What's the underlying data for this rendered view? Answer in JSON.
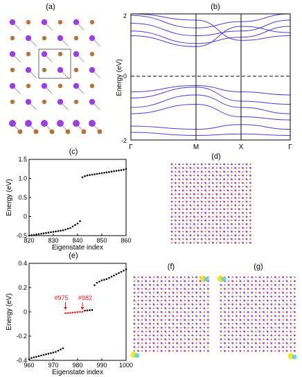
{
  "panels": {
    "a": "(a)",
    "b": "(b)",
    "c": "(c)",
    "d": "(d)",
    "e": "(e)",
    "f": "(f)",
    "g": "(g)"
  },
  "colors": {
    "purple": "#9b3fe0",
    "brown": "#b8733a",
    "band": "#4a3fcf",
    "red": "#e0201a",
    "cyan": "#5ec8e6",
    "yellow": "#f0e21a"
  },
  "chart_b": {
    "ylabel": "Energy (eV)",
    "yticks": [
      "2",
      "0",
      "-2"
    ],
    "kpoints": [
      "Γ",
      "M",
      "X",
      "Γ"
    ]
  },
  "chart_data": [
    {
      "type": "scatter",
      "panel": "c",
      "xlabel": "Eigenstate index",
      "ylabel": "Energy (eV)",
      "xlim": [
        820,
        860
      ],
      "ylim": [
        -0.5,
        1.5
      ],
      "xticks": [
        "820",
        "830",
        "840",
        "850",
        "860"
      ],
      "yticks": [
        "-0.5",
        "0",
        "0.5",
        "1.0",
        "1.5"
      ],
      "x_start": 820,
      "y": [
        -0.5,
        -0.49,
        -0.48,
        -0.47,
        -0.46,
        -0.45,
        -0.44,
        -0.43,
        -0.42,
        -0.41,
        -0.4,
        -0.39,
        -0.38,
        -0.37,
        -0.36,
        -0.34,
        -0.32,
        -0.3,
        -0.26,
        -0.22,
        -0.18,
        -0.12,
        1.03,
        1.06,
        1.08,
        1.09,
        1.1,
        1.11,
        1.12,
        1.13,
        1.14,
        1.15,
        1.16,
        1.17,
        1.18,
        1.19,
        1.2,
        1.21,
        1.22,
        1.23,
        1.25
      ]
    },
    {
      "type": "scatter",
      "panel": "e",
      "xlabel": "Eigenstate index",
      "ylabel": "Energy (eV)",
      "xlim": [
        960,
        1000
      ],
      "ylim": [
        -0.4,
        0.4
      ],
      "xticks": [
        "960",
        "970",
        "980",
        "990",
        "1000"
      ],
      "yticks": [
        "-0.4",
        "-0.2",
        "0",
        "0.2",
        "0.4"
      ],
      "annotations": [
        "#975",
        "#982"
      ],
      "x_start": 960,
      "y": [
        -0.39,
        -0.38,
        -0.375,
        -0.37,
        -0.365,
        -0.36,
        -0.355,
        -0.35,
        -0.345,
        -0.34,
        -0.335,
        -0.33,
        -0.32,
        -0.31,
        -0.3,
        -0.01,
        -0.01,
        -0.008,
        -0.006,
        -0.004,
        -0.002,
        0.0,
        0.0,
        0.01,
        0.012,
        0.014,
        0.016,
        0.22,
        0.24,
        0.25,
        0.26,
        0.265,
        0.27,
        0.28,
        0.29,
        0.3,
        0.31,
        0.32,
        0.33,
        0.34,
        0.35
      ]
    }
  ]
}
